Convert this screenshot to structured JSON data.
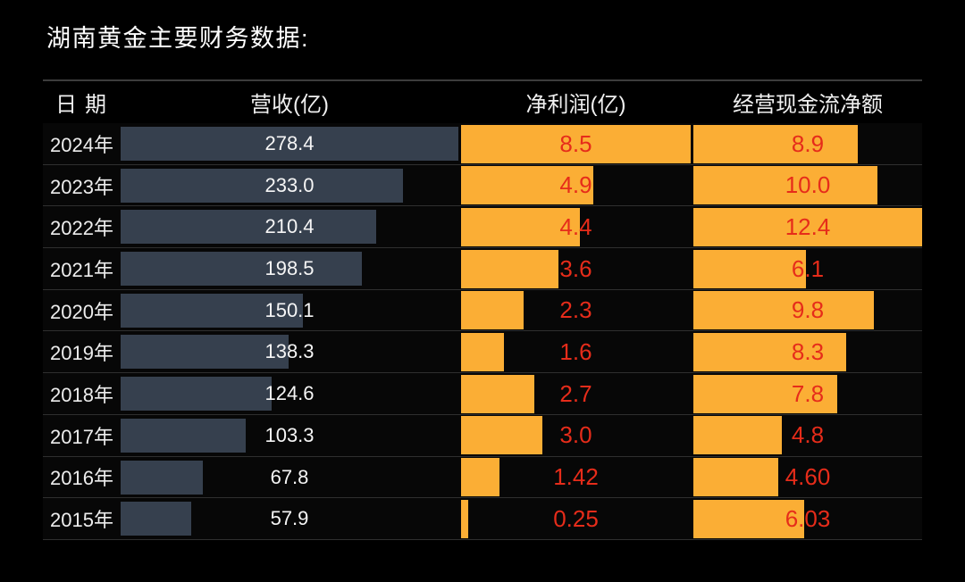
{
  "title": "湖南黄金主要财务数据:",
  "table": {
    "headers": {
      "date": "日期",
      "revenue": "营收(亿)",
      "net_profit": "净利润(亿)",
      "cash_flow": "经营现金流净额"
    }
  },
  "colors": {
    "background": "#000000",
    "revenue_bar": "#36404e",
    "profit_bar": "#fbae35",
    "value_red": "#e62c1a",
    "text_white": "#f2f2f2",
    "separator": "#2f2f2f",
    "header_line": "#3c3c3c"
  },
  "chart_data": {
    "type": "bar",
    "title": "湖南黄金主要财务数据:",
    "orientation": "horizontal",
    "legend_position": "none",
    "grid": false,
    "categories": [
      "2024年",
      "2023年",
      "2022年",
      "2021年",
      "2020年",
      "2019年",
      "2018年",
      "2017年",
      "2016年",
      "2015年"
    ],
    "series": [
      {
        "name": "营收(亿)",
        "axis_max": 278.4,
        "values": [
          278.4,
          233.0,
          210.4,
          198.5,
          150.1,
          138.3,
          124.6,
          103.3,
          67.8,
          57.9
        ]
      },
      {
        "name": "净利润(亿)",
        "axis_max": 8.5,
        "values": [
          8.5,
          4.9,
          4.4,
          3.6,
          2.3,
          1.6,
          2.7,
          3.0,
          1.42,
          0.25
        ]
      },
      {
        "name": "经营现金流净额",
        "axis_max": 12.4,
        "values": [
          8.9,
          10.0,
          12.4,
          6.1,
          9.8,
          8.3,
          7.8,
          4.8,
          4.6,
          6.03
        ]
      }
    ],
    "maxima": {
      "revenue": 278.4,
      "net_profit": 8.5,
      "cash_flow": 12.4
    },
    "rows": [
      {
        "year": "2024年",
        "revenue": "278.4",
        "net_profit": "8.5",
        "cash_flow": "8.9"
      },
      {
        "year": "2023年",
        "revenue": "233.0",
        "net_profit": "4.9",
        "cash_flow": "10.0"
      },
      {
        "year": "2022年",
        "revenue": "210.4",
        "net_profit": "4.4",
        "cash_flow": "12.4"
      },
      {
        "year": "2021年",
        "revenue": "198.5",
        "net_profit": "3.6",
        "cash_flow": "6.1"
      },
      {
        "year": "2020年",
        "revenue": "150.1",
        "net_profit": "2.3",
        "cash_flow": "9.8"
      },
      {
        "year": "2019年",
        "revenue": "138.3",
        "net_profit": "1.6",
        "cash_flow": "8.3"
      },
      {
        "year": "2018年",
        "revenue": "124.6",
        "net_profit": "2.7",
        "cash_flow": "7.8"
      },
      {
        "year": "2017年",
        "revenue": "103.3",
        "net_profit": "3.0",
        "cash_flow": "4.8"
      },
      {
        "year": "2016年",
        "revenue": "67.8",
        "net_profit": "1.42",
        "cash_flow": "4.60"
      },
      {
        "year": "2015年",
        "revenue": "57.9",
        "net_profit": "0.25",
        "cash_flow": "6.03"
      }
    ]
  }
}
